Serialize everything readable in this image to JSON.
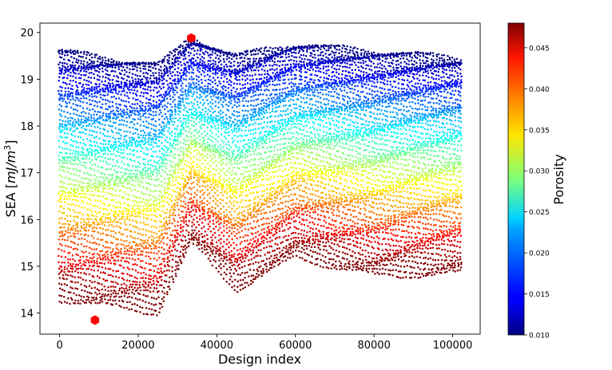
{
  "chart_data": {
    "type": "scatter",
    "title": "",
    "xlabel": "Design index",
    "ylabel_main": "SEA [",
    "ylabel_unit_base": "mJ/m",
    "ylabel_unit_exp": "3",
    "ylabel_close": "]",
    "xlim": [
      -5000,
      107000
    ],
    "ylim": [
      13.55,
      20.2
    ],
    "xticks": [
      0,
      20000,
      40000,
      60000,
      80000,
      100000
    ],
    "xtick_labels": [
      "0",
      "20000",
      "40000",
      "60000",
      "80000",
      "100000"
    ],
    "yticks": [
      14,
      15,
      16,
      17,
      18,
      19,
      20
    ],
    "ytick_labels": [
      "14",
      "15",
      "16",
      "17",
      "18",
      "19",
      "20"
    ],
    "colorbar": {
      "label": "Porosity",
      "colormap": "jet",
      "range": [
        0.01,
        0.048
      ],
      "ticks": [
        0.01,
        0.015,
        0.02,
        0.025,
        0.03,
        0.035,
        0.04,
        0.045
      ],
      "tick_labels": [
        "0.010",
        "0.015",
        "0.020",
        "0.025",
        "0.030",
        "0.035",
        "0.040",
        "0.045"
      ]
    },
    "x_range": [
      0,
      102000
    ],
    "sea_range": [
      13.85,
      19.9
    ],
    "highlighted_points": [
      {
        "name": "max SEA design",
        "x": 33500,
        "y": 19.88,
        "color": "#ff0000"
      },
      {
        "name": "min SEA design",
        "x": 9000,
        "y": 13.85,
        "color": "#ff0000"
      }
    ],
    "trend_note_points": [
      {
        "x": 0,
        "y_top": 19.6,
        "y_bottom": 14.3
      },
      {
        "x": 25000,
        "y_top": 19.3,
        "y_bottom": 14.0
      },
      {
        "x": 33500,
        "y_top": 19.9,
        "y_bottom": 15.5
      },
      {
        "x": 45000,
        "y_top": 19.5,
        "y_bottom": 14.5
      },
      {
        "x": 60000,
        "y_top": 19.75,
        "y_bottom": 15.2
      },
      {
        "x": 80000,
        "y_top": 19.6,
        "y_bottom": 14.8
      },
      {
        "x": 102000,
        "y_top": 19.45,
        "y_bottom": 14.85
      }
    ]
  }
}
